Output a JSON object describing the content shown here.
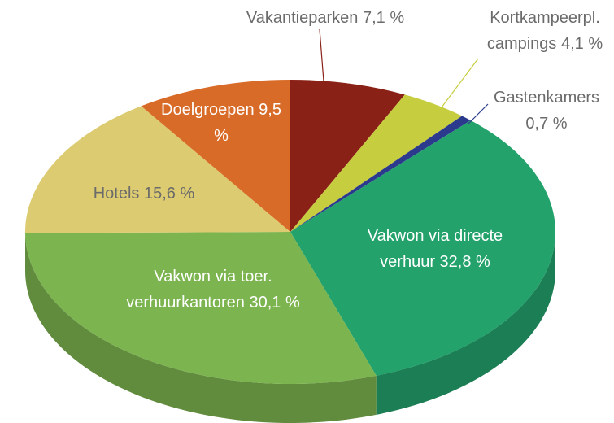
{
  "chart_data": {
    "type": "pie",
    "categories": [
      "Vakantieparken",
      "Kortkampeerpl. campings",
      "Gastenkamers",
      "Vakwon via directe verhuur",
      "Vakwon via toer. verhuurkantoren",
      "Hotels",
      "Doelgroepen"
    ],
    "values": [
      7.1,
      4.1,
      0.7,
      32.8,
      30.1,
      15.6,
      9.5
    ],
    "value_labels": [
      "7,1 %",
      "4,1 %",
      "0,7 %",
      "32,8 %",
      "30,1 %",
      "15,6 %",
      "9,5 %"
    ],
    "colors": [
      "#8a2117",
      "#c6cd3e",
      "#2c3a8e",
      "#24a26c",
      "#7cb44f",
      "#dccb70",
      "#d96b28"
    ]
  }
}
